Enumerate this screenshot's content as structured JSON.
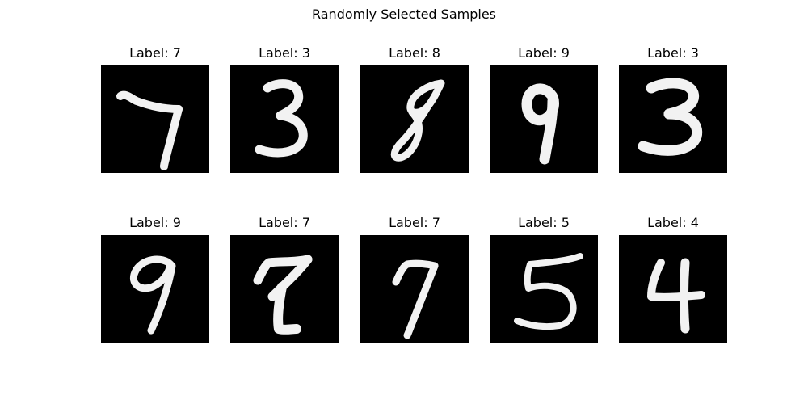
{
  "title": "Randomly Selected Samples",
  "samples": [
    {
      "label": "Label: 7",
      "digit": "7"
    },
    {
      "label": "Label: 3",
      "digit": "3"
    },
    {
      "label": "Label: 8",
      "digit": "8"
    },
    {
      "label": "Label: 9",
      "digit": "9"
    },
    {
      "label": "Label: 3",
      "digit": "3"
    },
    {
      "label": "Label: 9",
      "digit": "9"
    },
    {
      "label": "Label: 7",
      "digit": "7"
    },
    {
      "label": "Label: 7",
      "digit": "7"
    },
    {
      "label": "Label: 5",
      "digit": "5"
    },
    {
      "label": "Label: 4",
      "digit": "4"
    }
  ],
  "colors": {
    "image_background": "#000000",
    "digit_stroke": "#f2f2f2"
  }
}
